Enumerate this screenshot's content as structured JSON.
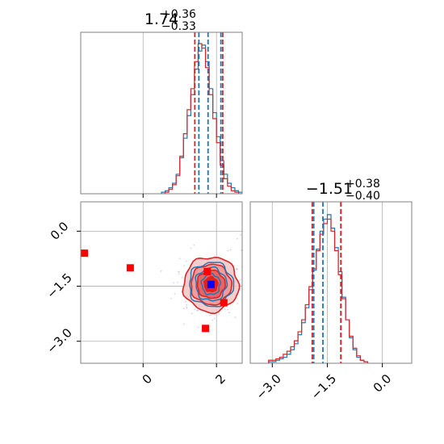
{
  "chart_data": {
    "type": "corner",
    "colors": {
      "blue": "#1f77b4",
      "red": "#d62728",
      "fill_red": "#f08a8a",
      "marker_red": "#ff0000",
      "marker_blue": "#0000ff",
      "grid": "#b0b0b0"
    },
    "panel_titles": {
      "p1": {
        "value": "1.74",
        "upper": "+0.36",
        "lower": "−0.33"
      },
      "p2": {
        "value": "−1.51",
        "upper": "+0.38",
        "lower": "−0.40"
      }
    },
    "axes": {
      "x1": {
        "range": [
          -1.7,
          2.7
        ],
        "ticks": [
          0,
          2
        ],
        "tick_labels": [
          "0",
          "2"
        ]
      },
      "x2": {
        "range": [
          -3.6,
          0.8
        ],
        "ticks": [
          -3.0,
          -1.5,
          0.0
        ],
        "tick_labels": [
          "−3.0",
          "−1.5",
          "0.0"
        ]
      },
      "y_joint": {
        "range": [
          -3.6,
          0.8
        ],
        "ticks": [
          0.0,
          -1.5,
          -3.0
        ],
        "tick_labels": [
          "0.0",
          "−1.5",
          "−3.0"
        ]
      }
    },
    "histogram_1": {
      "blue": {
        "bins": [
          0.55,
          0.65,
          0.75,
          0.85,
          0.95,
          1.05,
          1.15,
          1.25,
          1.35,
          1.45,
          1.55,
          1.65,
          1.75,
          1.85,
          1.95,
          2.05,
          2.15,
          2.25,
          2.35,
          2.45,
          2.55,
          2.65
        ],
        "counts": [
          1,
          2,
          4,
          7,
          13,
          24,
          37,
          52,
          66,
          83,
          95,
          99,
          88,
          70,
          54,
          38,
          22,
          13,
          7,
          4,
          2,
          1
        ]
      },
      "red": {
        "bins": [
          0.55,
          0.65,
          0.75,
          0.85,
          0.95,
          1.05,
          1.15,
          1.25,
          1.35,
          1.45,
          1.55,
          1.65,
          1.75,
          1.85,
          1.95,
          2.05,
          2.15,
          2.25,
          2.35,
          2.45,
          2.55,
          2.65
        ],
        "counts": [
          0,
          1,
          3,
          6,
          12,
          25,
          40,
          56,
          70,
          88,
          100,
          97,
          84,
          66,
          50,
          34,
          19,
          10,
          5,
          2,
          1,
          0
        ]
      },
      "lines_blue": [
        1.52,
        2.12
      ],
      "lines_red": [
        1.41,
        2.17
      ],
      "center_blue": 1.77
    },
    "histogram_2": {
      "blue": {
        "bins": [
          -3.05,
          -2.95,
          -2.85,
          -2.75,
          -2.65,
          -2.55,
          -2.45,
          -2.35,
          -2.25,
          -2.15,
          -2.05,
          -1.95,
          -1.85,
          -1.75,
          -1.65,
          -1.55,
          -1.45,
          -1.35,
          -1.25,
          -1.15,
          -1.05,
          -0.95,
          -0.85,
          -0.75,
          -0.65,
          -0.55,
          -0.45
        ],
        "counts": [
          1,
          1,
          2,
          3,
          4,
          6,
          9,
          13,
          19,
          27,
          37,
          49,
          62,
          76,
          88,
          96,
          99,
          90,
          77,
          61,
          44,
          29,
          17,
          9,
          4,
          2,
          1
        ]
      },
      "red": {
        "bins": [
          -3.05,
          -2.95,
          -2.85,
          -2.75,
          -2.65,
          -2.55,
          -2.45,
          -2.35,
          -2.25,
          -2.15,
          -2.05,
          -1.95,
          -1.85,
          -1.75,
          -1.65,
          -1.55,
          -1.45,
          -1.35,
          -1.25,
          -1.15,
          -1.05,
          -0.95,
          -0.85,
          -0.75,
          -0.65,
          -0.55,
          -0.45
        ],
        "counts": [
          2,
          2,
          3,
          4,
          6,
          8,
          11,
          15,
          21,
          29,
          39,
          51,
          63,
          75,
          86,
          93,
          96,
          88,
          75,
          59,
          43,
          29,
          18,
          10,
          5,
          2,
          1
        ]
      },
      "lines_blue": [
        -1.87,
        -1.13
      ],
      "lines_red": [
        -1.91,
        -1.13
      ],
      "center_blue": -1.62
    },
    "joint": {
      "center": [
        1.85,
        -1.45
      ],
      "contours_red": [
        {
          "rx": 0.75,
          "ry": 0.75
        },
        {
          "rx": 0.55,
          "ry": 0.55
        },
        {
          "rx": 0.38,
          "ry": 0.38
        }
      ],
      "contours_blue": [
        {
          "rx": 0.6,
          "ry": 0.6
        },
        {
          "rx": 0.42,
          "ry": 0.45
        },
        {
          "rx": 0.25,
          "ry": 0.28
        }
      ],
      "markers_red": [
        [
          -1.6,
          -0.6
        ],
        [
          -0.35,
          -1.0
        ],
        [
          1.7,
          -2.65
        ],
        [
          2.2,
          -1.95
        ],
        [
          1.75,
          -1.1
        ]
      ],
      "marker_blue": [
        1.85,
        -1.45
      ]
    }
  }
}
